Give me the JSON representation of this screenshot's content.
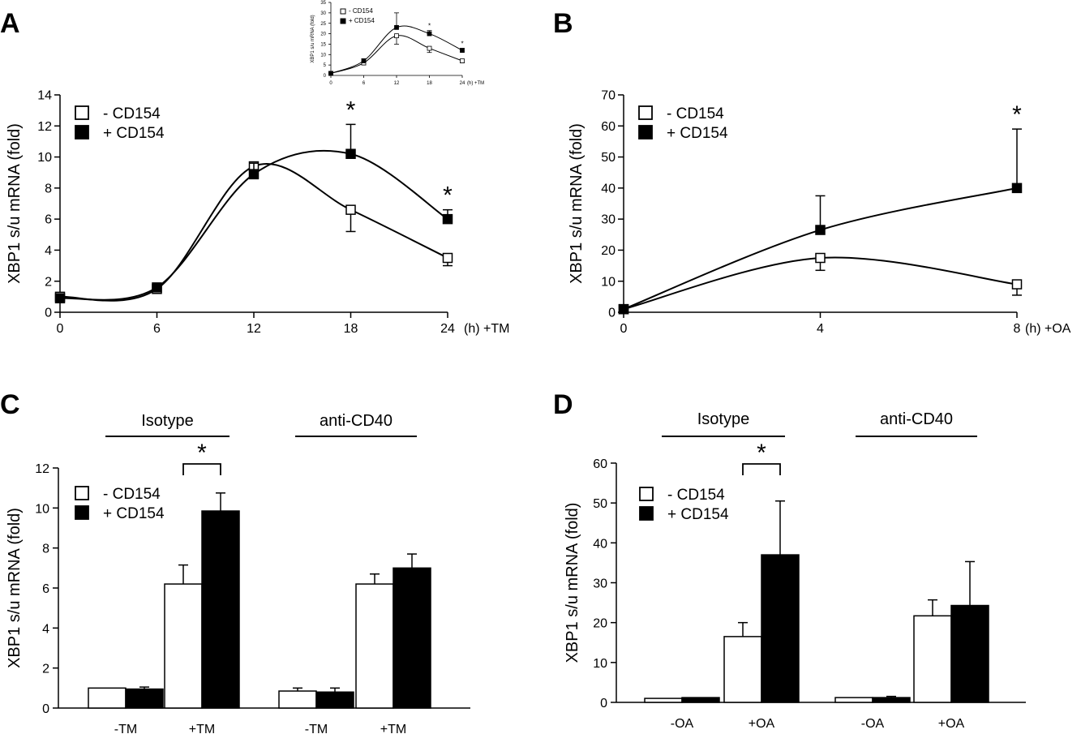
{
  "colors": {
    "minus": "#ffffff",
    "plus": "#000000",
    "stroke": "#000000"
  },
  "panels": {
    "A": "A",
    "B": "B",
    "C": "C",
    "D": "D"
  },
  "chart_data": [
    {
      "id": "A",
      "type": "line",
      "ylabel": "XBP1 s/u mRNA (fold)",
      "x_suffix": "(h) +TM",
      "x": [
        0,
        6,
        12,
        18,
        24
      ],
      "x_ticks": [
        "0",
        "6",
        "12",
        "18",
        "24"
      ],
      "xlim": [
        0,
        24
      ],
      "ylim": [
        0,
        14
      ],
      "y_ticks": [
        "0",
        "2",
        "4",
        "6",
        "8",
        "10",
        "12",
        "14"
      ],
      "series": [
        {
          "name": "- CD154",
          "values": [
            1.0,
            1.5,
            9.4,
            6.6,
            3.5
          ],
          "err": [
            0.2,
            0.1,
            0.8,
            1.4,
            0.5
          ]
        },
        {
          "name": "+ CD154",
          "values": [
            0.9,
            1.6,
            8.9,
            10.2,
            6.0
          ],
          "err": [
            0.1,
            0.1,
            0.7,
            1.9,
            0.6
          ]
        }
      ],
      "significance": [
        "",
        "",
        "",
        "*",
        "*"
      ]
    },
    {
      "id": "inset",
      "type": "line",
      "ylabel": "XBP1 s/u mRNA (fold)",
      "x_suffix": "(h) +TM",
      "x": [
        0,
        6,
        12,
        18,
        24
      ],
      "x_ticks": [
        "0",
        "6",
        "12",
        "18",
        "24"
      ],
      "xlim": [
        0,
        24
      ],
      "ylim": [
        0,
        35
      ],
      "y_ticks": [
        "0",
        "5",
        "10",
        "15",
        "20",
        "25",
        "30",
        "35"
      ],
      "series": [
        {
          "name": "- CD154",
          "values": [
            1,
            6,
            19,
            13,
            7
          ],
          "err": [
            0.5,
            1,
            4,
            2,
            1
          ]
        },
        {
          "name": "+ CD154",
          "values": [
            1,
            7,
            23,
            20,
            12
          ],
          "err": [
            0.5,
            1,
            7,
            1.5,
            1
          ]
        }
      ],
      "significance": [
        "",
        "",
        "",
        "*",
        "*"
      ]
    },
    {
      "id": "B",
      "type": "line",
      "ylabel": "XBP1 s/u mRNA (fold)",
      "x_suffix": "(h) +OA",
      "x": [
        0,
        4,
        8
      ],
      "x_ticks": [
        "0",
        "4",
        "8"
      ],
      "xlim": [
        0,
        8
      ],
      "ylim": [
        0,
        70
      ],
      "y_ticks": [
        "0",
        "10",
        "20",
        "30",
        "40",
        "50",
        "60",
        "70"
      ],
      "series": [
        {
          "name": "- CD154",
          "values": [
            1,
            17.5,
            9
          ],
          "err": [
            0.5,
            4,
            3.5
          ]
        },
        {
          "name": "+ CD154",
          "values": [
            1,
            26.5,
            40
          ],
          "err": [
            0.5,
            11,
            19
          ]
        }
      ],
      "significance": [
        "",
        "",
        "*"
      ]
    },
    {
      "id": "C",
      "type": "bar",
      "ylabel": "XBP1 s/u mRNA (fold)",
      "categories": [
        "-TM",
        "+TM",
        "-TM",
        "+TM"
      ],
      "groups": [
        "Isotype",
        "anti-CD40"
      ],
      "ylim": [
        0,
        12
      ],
      "y_ticks": [
        "0",
        "2",
        "4",
        "6",
        "8",
        "10",
        "12"
      ],
      "series": [
        {
          "name": "- CD154",
          "values": [
            1.0,
            6.2,
            0.85,
            6.2
          ],
          "err": [
            0,
            0.95,
            0.15,
            0.5
          ]
        },
        {
          "name": "+ CD154",
          "values": [
            0.95,
            9.85,
            0.8,
            7.0
          ],
          "err": [
            0.1,
            0.9,
            0.2,
            0.7
          ]
        }
      ],
      "significance": "*"
    },
    {
      "id": "D",
      "type": "bar",
      "ylabel": "XBP1 s/u mRNA (fold)",
      "categories": [
        "-OA",
        "+OA",
        "-OA",
        "+OA"
      ],
      "groups": [
        "Isotype",
        "anti-CD40"
      ],
      "ylim": [
        0,
        60
      ],
      "y_ticks": [
        "0",
        "10",
        "20",
        "30",
        "40",
        "50",
        "60"
      ],
      "series": [
        {
          "name": "- CD154",
          "values": [
            1,
            16.5,
            1.2,
            21.7
          ],
          "err": [
            0,
            3.5,
            0,
            4
          ]
        },
        {
          "name": "+ CD154",
          "values": [
            1.2,
            37,
            1.2,
            24.3
          ],
          "err": [
            0,
            13.5,
            0.3,
            11
          ]
        }
      ],
      "significance": "*"
    }
  ]
}
